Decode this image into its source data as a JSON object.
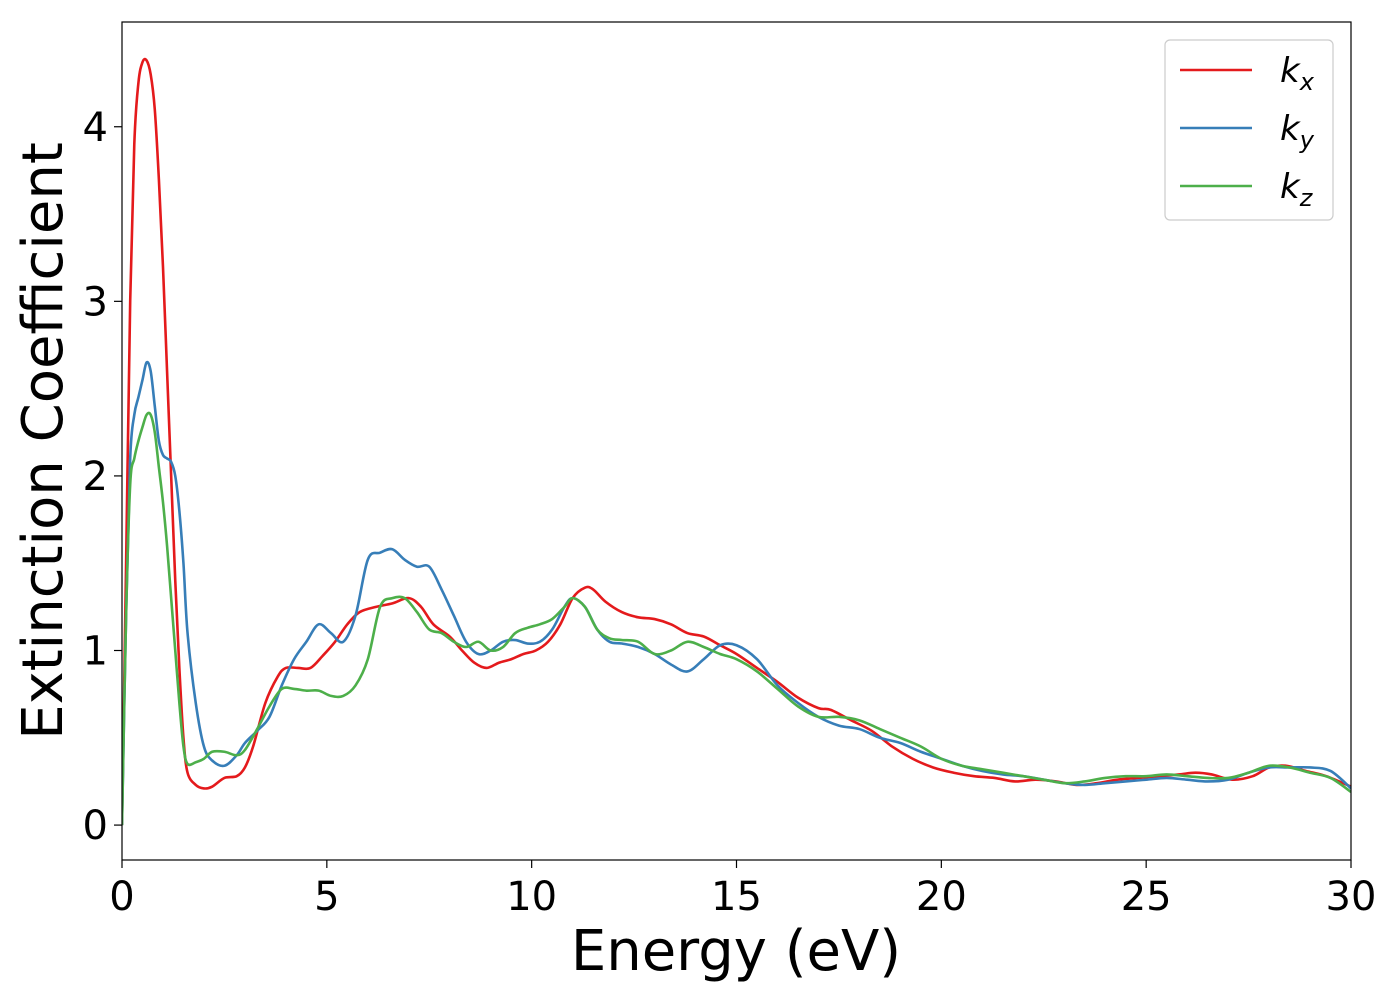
{
  "chart_data": {
    "type": "line",
    "xlabel": "Energy (eV)",
    "ylabel": "Extinction Coefficient",
    "xlim": [
      0,
      30
    ],
    "ylim": [
      -0.2,
      4.6
    ],
    "xticks": [
      0,
      5,
      10,
      15,
      20,
      25,
      30
    ],
    "xtick_labels": [
      "0",
      "5",
      "10",
      "15",
      "20",
      "25",
      "30"
    ],
    "yticks": [
      0,
      1,
      2,
      3,
      4
    ],
    "ytick_labels": [
      "0",
      "1",
      "2",
      "3",
      "4"
    ],
    "grid": false,
    "legend_position": "top-right",
    "series": [
      {
        "name": "k",
        "subscript": "x",
        "color": "#e41a1c",
        "x": [
          0,
          0.1,
          0.2,
          0.3,
          0.4,
          0.5,
          0.6,
          0.7,
          0.8,
          0.9,
          1.0,
          1.1,
          1.2,
          1.3,
          1.4,
          1.5,
          1.6,
          1.8,
          2.0,
          2.2,
          2.5,
          2.8,
          3.0,
          3.2,
          3.5,
          3.8,
          4.0,
          4.3,
          4.6,
          4.9,
          5.2,
          5.5,
          5.8,
          6.2,
          6.6,
          7.0,
          7.3,
          7.6,
          8.0,
          8.3,
          8.6,
          8.9,
          9.2,
          9.5,
          9.8,
          10.1,
          10.4,
          10.7,
          11.0,
          11.3,
          11.5,
          11.8,
          12.2,
          12.6,
          13.0,
          13.4,
          13.8,
          14.2,
          14.6,
          15.0,
          15.5,
          16.0,
          16.5,
          17.0,
          17.3,
          17.8,
          18.3,
          18.8,
          19.3,
          19.8,
          20.3,
          20.8,
          21.3,
          21.8,
          22.3,
          22.8,
          23.3,
          23.8,
          24.3,
          24.8,
          25.3,
          25.8,
          26.2,
          26.6,
          27.1,
          27.6,
          28.0,
          28.4,
          28.9,
          29.4,
          30.0
        ],
        "values": [
          0,
          1.5,
          3.0,
          3.9,
          4.25,
          4.37,
          4.38,
          4.3,
          4.1,
          3.7,
          3.2,
          2.6,
          2.0,
          1.4,
          0.9,
          0.5,
          0.3,
          0.23,
          0.21,
          0.22,
          0.27,
          0.28,
          0.33,
          0.45,
          0.7,
          0.85,
          0.9,
          0.9,
          0.9,
          0.97,
          1.05,
          1.15,
          1.22,
          1.25,
          1.27,
          1.3,
          1.25,
          1.15,
          1.08,
          1.0,
          0.93,
          0.9,
          0.93,
          0.95,
          0.98,
          1.0,
          1.05,
          1.15,
          1.3,
          1.36,
          1.35,
          1.28,
          1.22,
          1.19,
          1.18,
          1.15,
          1.1,
          1.08,
          1.03,
          0.98,
          0.9,
          0.82,
          0.73,
          0.67,
          0.66,
          0.6,
          0.54,
          0.45,
          0.38,
          0.33,
          0.3,
          0.28,
          0.27,
          0.25,
          0.26,
          0.25,
          0.23,
          0.24,
          0.26,
          0.27,
          0.28,
          0.29,
          0.3,
          0.29,
          0.26,
          0.28,
          0.33,
          0.34,
          0.31,
          0.28,
          0.22
        ]
      },
      {
        "name": "k",
        "subscript": "y",
        "color": "#377eb8",
        "x": [
          0,
          0.1,
          0.2,
          0.3,
          0.4,
          0.5,
          0.6,
          0.7,
          0.8,
          0.9,
          1.0,
          1.1,
          1.2,
          1.3,
          1.4,
          1.5,
          1.6,
          1.8,
          2.0,
          2.2,
          2.5,
          2.8,
          3.0,
          3.3,
          3.6,
          3.9,
          4.2,
          4.5,
          4.8,
          5.1,
          5.4,
          5.7,
          6.0,
          6.3,
          6.6,
          6.9,
          7.2,
          7.5,
          7.8,
          8.1,
          8.4,
          8.7,
          9.0,
          9.3,
          9.6,
          9.9,
          10.2,
          10.5,
          10.8,
          11.0,
          11.3,
          11.6,
          11.9,
          12.2,
          12.6,
          13.0,
          13.4,
          13.8,
          14.2,
          14.6,
          15.0,
          15.5,
          16.0,
          16.5,
          17.0,
          17.5,
          18.0,
          18.5,
          19.0,
          19.5,
          20.0,
          20.5,
          21.0,
          21.5,
          22.0,
          22.5,
          23.0,
          23.5,
          24.0,
          24.5,
          25.0,
          25.5,
          26.0,
          26.5,
          27.0,
          27.5,
          28.0,
          28.5,
          29.0,
          29.5,
          30.0
        ],
        "values": [
          0,
          1.2,
          2.1,
          2.35,
          2.45,
          2.55,
          2.65,
          2.6,
          2.4,
          2.2,
          2.12,
          2.1,
          2.08,
          2.0,
          1.8,
          1.5,
          1.1,
          0.7,
          0.45,
          0.37,
          0.34,
          0.4,
          0.47,
          0.54,
          0.62,
          0.8,
          0.95,
          1.05,
          1.15,
          1.1,
          1.05,
          1.2,
          1.52,
          1.56,
          1.58,
          1.52,
          1.48,
          1.48,
          1.35,
          1.2,
          1.05,
          0.98,
          1.0,
          1.05,
          1.06,
          1.04,
          1.05,
          1.12,
          1.25,
          1.3,
          1.25,
          1.12,
          1.05,
          1.04,
          1.02,
          0.98,
          0.92,
          0.88,
          0.95,
          1.03,
          1.03,
          0.95,
          0.8,
          0.7,
          0.62,
          0.57,
          0.55,
          0.5,
          0.47,
          0.42,
          0.38,
          0.34,
          0.31,
          0.29,
          0.28,
          0.26,
          0.24,
          0.23,
          0.24,
          0.25,
          0.26,
          0.27,
          0.26,
          0.25,
          0.26,
          0.3,
          0.33,
          0.33,
          0.33,
          0.31,
          0.21
        ]
      },
      {
        "name": "k",
        "subscript": "z",
        "color": "#4daf4a",
        "x": [
          0,
          0.1,
          0.2,
          0.3,
          0.4,
          0.5,
          0.6,
          0.7,
          0.8,
          0.9,
          1.0,
          1.1,
          1.2,
          1.3,
          1.4,
          1.5,
          1.6,
          1.8,
          2.0,
          2.2,
          2.5,
          2.8,
          3.0,
          3.3,
          3.6,
          3.9,
          4.2,
          4.5,
          4.8,
          5.1,
          5.4,
          5.7,
          6.0,
          6.3,
          6.6,
          6.9,
          7.2,
          7.5,
          7.8,
          8.1,
          8.4,
          8.7,
          9.0,
          9.3,
          9.6,
          9.9,
          10.2,
          10.5,
          10.8,
          11.0,
          11.3,
          11.6,
          11.9,
          12.2,
          12.6,
          13.0,
          13.4,
          13.8,
          14.2,
          14.6,
          15.0,
          15.5,
          16.0,
          16.5,
          17.0,
          17.5,
          18.0,
          18.5,
          19.0,
          19.5,
          20.0,
          20.5,
          21.0,
          21.5,
          22.0,
          22.5,
          23.0,
          23.5,
          24.0,
          24.5,
          25.0,
          25.5,
          26.0,
          26.5,
          27.0,
          27.5,
          28.0,
          28.5,
          29.0,
          29.5,
          30.0
        ],
        "values": [
          0,
          1.2,
          1.95,
          2.1,
          2.2,
          2.28,
          2.35,
          2.35,
          2.25,
          2.05,
          1.85,
          1.6,
          1.3,
          1.0,
          0.7,
          0.45,
          0.35,
          0.36,
          0.38,
          0.42,
          0.42,
          0.4,
          0.43,
          0.55,
          0.68,
          0.78,
          0.78,
          0.77,
          0.77,
          0.74,
          0.74,
          0.8,
          0.95,
          1.25,
          1.3,
          1.3,
          1.22,
          1.12,
          1.1,
          1.05,
          1.02,
          1.05,
          1.0,
          1.02,
          1.1,
          1.13,
          1.15,
          1.18,
          1.25,
          1.3,
          1.25,
          1.12,
          1.07,
          1.06,
          1.05,
          0.98,
          1.0,
          1.05,
          1.02,
          0.98,
          0.95,
          0.88,
          0.78,
          0.68,
          0.62,
          0.62,
          0.6,
          0.55,
          0.5,
          0.45,
          0.38,
          0.34,
          0.32,
          0.3,
          0.28,
          0.26,
          0.24,
          0.25,
          0.27,
          0.28,
          0.28,
          0.29,
          0.28,
          0.27,
          0.27,
          0.3,
          0.34,
          0.33,
          0.3,
          0.27,
          0.19
        ]
      }
    ]
  }
}
